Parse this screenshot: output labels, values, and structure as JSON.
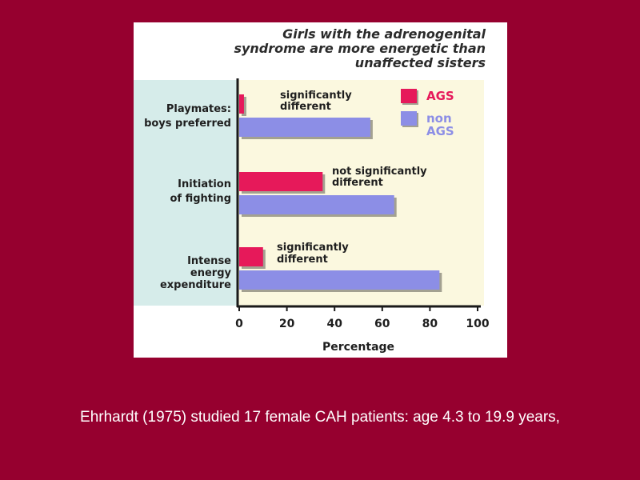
{
  "chart_data": {
    "type": "bar",
    "orientation": "horizontal",
    "title_lines": [
      "Girls with the adrenogenital",
      "syndrome are more energetic than",
      "unaffected sisters"
    ],
    "xlabel": "Percentage",
    "xlim": [
      0,
      100
    ],
    "xticks": [
      0,
      20,
      40,
      60,
      80,
      100
    ],
    "categories": [
      {
        "lines": [
          "Playmates:",
          "boys preferred"
        ],
        "note": [
          "significantly",
          "different"
        ]
      },
      {
        "lines": [
          "Initiation",
          "of fighting"
        ],
        "note": [
          "not significantly",
          "different"
        ]
      },
      {
        "lines": [
          "Intense",
          "energy",
          "expenditure"
        ],
        "note": [
          "significantly",
          "different"
        ]
      }
    ],
    "series": [
      {
        "name": "AGS",
        "legend_lines": [
          "AGS"
        ],
        "color": "#e6195a",
        "values": [
          2,
          35,
          10
        ]
      },
      {
        "name": "non AGS",
        "legend_lines": [
          "non",
          "AGS"
        ],
        "color": "#8c8ee6",
        "values": [
          55,
          65,
          84
        ]
      }
    ],
    "grid": false,
    "legend_position": "top-right"
  },
  "caption": "Ehrhardt (1975) studied 17 female CAH patients: age 4.3 to 19.9 years,"
}
